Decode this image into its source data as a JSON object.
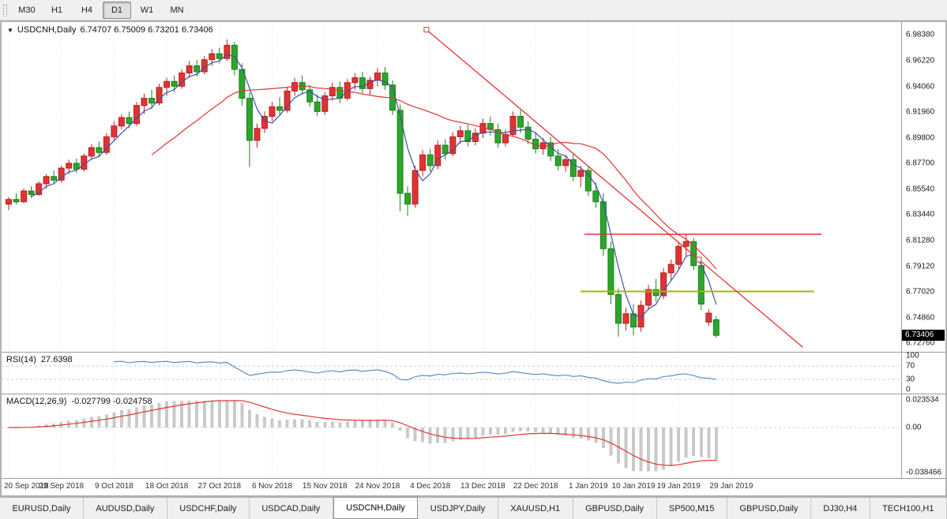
{
  "toolbar": {
    "timeframes": [
      {
        "label": "M30",
        "active": false
      },
      {
        "label": "H1",
        "active": false
      },
      {
        "label": "H4",
        "active": false
      },
      {
        "label": "D1",
        "active": true
      },
      {
        "label": "W1",
        "active": false
      },
      {
        "label": "MN",
        "active": false
      }
    ]
  },
  "chart": {
    "title_symbol": "USDCNH,Daily",
    "title_ohlc": "6.74707 6.75009 6.73201 6.73406",
    "current_price": "6.73406",
    "icons": {
      "title_arrow": "▼"
    },
    "price_axis": [
      "6.98380",
      "6.96220",
      "6.94060",
      "6.91960",
      "6.89800",
      "6.87700",
      "6.85540",
      "6.83440",
      "6.81280",
      "6.79120",
      "6.77020",
      "6.74860",
      "6.72760"
    ]
  },
  "chart_data": {
    "type": "candlestick",
    "symbol": "USDCNH",
    "timeframe": "Daily",
    "y_axis": {
      "min": 6.7276,
      "max": 6.9838
    },
    "style": {
      "up_color": "#e03434",
      "up_stroke": "#b42222",
      "down_color": "#2ca52c",
      "down_stroke": "#1f7f1f",
      "grid_color": "#e4e4e4",
      "badge_bg": "#000000"
    },
    "ohlc": [
      [
        6.843,
        6.849,
        6.838,
        6.847
      ],
      [
        6.847,
        6.852,
        6.843,
        6.845
      ],
      [
        6.845,
        6.856,
        6.844,
        6.854
      ],
      [
        6.854,
        6.858,
        6.848,
        6.851
      ],
      [
        6.851,
        6.862,
        6.85,
        6.86
      ],
      [
        6.86,
        6.868,
        6.856,
        6.866
      ],
      [
        6.866,
        6.871,
        6.86,
        6.863
      ],
      [
        6.863,
        6.875,
        6.861,
        6.873
      ],
      [
        6.873,
        6.88,
        6.868,
        6.877
      ],
      [
        6.877,
        6.881,
        6.869,
        6.872
      ],
      [
        6.872,
        6.885,
        6.87,
        6.883
      ],
      [
        6.883,
        6.893,
        6.88,
        6.89
      ],
      [
        6.89,
        6.895,
        6.882,
        6.886
      ],
      [
        6.886,
        6.902,
        6.884,
        6.899
      ],
      [
        6.899,
        6.912,
        6.896,
        6.908
      ],
      [
        6.908,
        6.918,
        6.905,
        6.915
      ],
      [
        6.915,
        6.92,
        6.906,
        6.91
      ],
      [
        6.91,
        6.928,
        6.908,
        6.925
      ],
      [
        6.925,
        6.935,
        6.918,
        6.931
      ],
      [
        6.931,
        6.938,
        6.922,
        6.927
      ],
      [
        6.927,
        6.943,
        6.925,
        6.94
      ],
      [
        6.94,
        6.948,
        6.933,
        6.945
      ],
      [
        6.945,
        6.95,
        6.936,
        6.941
      ],
      [
        6.941,
        6.955,
        6.939,
        6.952
      ],
      [
        6.952,
        6.962,
        6.948,
        6.958
      ],
      [
        6.958,
        6.963,
        6.949,
        6.953
      ],
      [
        6.953,
        6.966,
        6.951,
        6.963
      ],
      [
        6.963,
        6.972,
        6.958,
        6.968
      ],
      [
        6.968,
        6.973,
        6.96,
        6.964
      ],
      [
        6.964,
        6.98,
        6.962,
        6.975
      ],
      [
        6.975,
        6.978,
        6.95,
        6.955
      ],
      [
        6.955,
        6.96,
        6.925,
        6.931
      ],
      [
        6.931,
        6.936,
        6.874,
        6.896
      ],
      [
        6.896,
        6.91,
        6.89,
        6.906
      ],
      [
        6.906,
        6.92,
        6.902,
        6.916
      ],
      [
        6.916,
        6.928,
        6.912,
        6.924
      ],
      [
        6.924,
        6.932,
        6.917,
        6.921
      ],
      [
        6.921,
        6.94,
        6.919,
        6.937
      ],
      [
        6.937,
        6.948,
        6.933,
        6.944
      ],
      [
        6.944,
        6.95,
        6.934,
        6.938
      ],
      [
        6.938,
        6.942,
        6.924,
        6.928
      ],
      [
        6.928,
        6.934,
        6.916,
        6.92
      ],
      [
        6.92,
        6.936,
        6.917,
        6.933
      ],
      [
        6.933,
        6.944,
        6.929,
        6.94
      ],
      [
        6.94,
        6.945,
        6.927,
        6.931
      ],
      [
        6.931,
        6.947,
        6.929,
        6.944
      ],
      [
        6.944,
        6.952,
        6.938,
        6.948
      ],
      [
        6.948,
        6.953,
        6.935,
        6.939
      ],
      [
        6.939,
        6.949,
        6.934,
        6.946
      ],
      [
        6.946,
        6.956,
        6.941,
        6.952
      ],
      [
        6.952,
        6.957,
        6.938,
        6.942
      ],
      [
        6.942,
        6.946,
        6.917,
        6.921
      ],
      [
        6.921,
        6.926,
        6.837,
        6.852
      ],
      [
        6.852,
        6.858,
        6.833,
        6.843
      ],
      [
        6.843,
        6.875,
        6.84,
        6.871
      ],
      [
        6.871,
        6.888,
        6.866,
        6.884
      ],
      [
        6.884,
        6.889,
        6.87,
        6.875
      ],
      [
        6.875,
        6.896,
        6.872,
        6.892
      ],
      [
        6.892,
        6.897,
        6.88,
        6.885
      ],
      [
        6.885,
        6.903,
        6.883,
        6.899
      ],
      [
        6.899,
        6.908,
        6.893,
        6.904
      ],
      [
        6.904,
        6.909,
        6.891,
        6.895
      ],
      [
        6.895,
        6.906,
        6.892,
        6.902
      ],
      [
        6.902,
        6.914,
        6.898,
        6.91
      ],
      [
        6.91,
        6.916,
        6.9,
        6.905
      ],
      [
        6.905,
        6.91,
        6.89,
        6.894
      ],
      [
        6.894,
        6.905,
        6.891,
        6.901
      ],
      [
        6.901,
        6.92,
        6.899,
        6.916
      ],
      [
        6.916,
        6.921,
        6.902,
        6.907
      ],
      [
        6.907,
        6.912,
        6.893,
        6.897
      ],
      [
        6.897,
        6.903,
        6.885,
        6.889
      ],
      [
        6.889,
        6.898,
        6.884,
        6.894
      ],
      [
        6.894,
        6.899,
        6.879,
        6.883
      ],
      [
        6.883,
        6.889,
        6.871,
        6.875
      ],
      [
        6.875,
        6.884,
        6.87,
        6.88
      ],
      [
        6.88,
        6.885,
        6.862,
        6.866
      ],
      [
        6.866,
        6.875,
        6.857,
        6.871
      ],
      [
        6.871,
        6.874,
        6.85,
        6.854
      ],
      [
        6.854,
        6.861,
        6.84,
        6.845
      ],
      [
        6.845,
        6.852,
        6.8,
        6.806
      ],
      [
        6.806,
        6.812,
        6.76,
        6.768
      ],
      [
        6.768,
        6.773,
        6.733,
        6.744
      ],
      [
        6.744,
        6.757,
        6.738,
        6.752
      ],
      [
        6.752,
        6.76,
        6.734,
        6.741
      ],
      [
        6.741,
        6.763,
        6.737,
        6.759
      ],
      [
        6.759,
        6.776,
        6.755,
        6.772
      ],
      [
        6.772,
        6.781,
        6.762,
        6.767
      ],
      [
        6.767,
        6.79,
        6.764,
        6.786
      ],
      [
        6.786,
        6.797,
        6.78,
        6.793
      ],
      [
        6.793,
        6.812,
        6.789,
        6.808
      ],
      [
        6.808,
        6.818,
        6.8,
        6.812
      ],
      [
        6.812,
        6.815,
        6.788,
        6.792
      ],
      [
        6.792,
        6.796,
        6.755,
        6.76
      ],
      [
        6.745,
        6.756,
        6.742,
        6.7525
      ],
      [
        6.74707,
        6.75009,
        6.73201,
        6.73406
      ]
    ],
    "date_ticks": [
      {
        "i": 0,
        "label": "20 Sep 2018"
      },
      {
        "i": 7,
        "label": "29 Sep 2018"
      },
      {
        "i": 14,
        "label": "9 Oct 2018"
      },
      {
        "i": 21,
        "label": "18 Oct 2018"
      },
      {
        "i": 28,
        "label": "27 Oct 2018"
      },
      {
        "i": 35,
        "label": "6 Nov 2018"
      },
      {
        "i": 42,
        "label": "15 Nov 2018"
      },
      {
        "i": 49,
        "label": "24 Nov 2018"
      },
      {
        "i": 56,
        "label": "4 Dec 2018"
      },
      {
        "i": 63,
        "label": "13 Dec 2018"
      },
      {
        "i": 70,
        "label": "22 Dec 2018"
      },
      {
        "i": 77,
        "label": "1 Jan 2019"
      },
      {
        "i": 83,
        "label": "10 Jan 2019"
      },
      {
        "i": 89,
        "label": "19 Jan 2019"
      },
      {
        "i": 96,
        "label": "29 Jan 2019"
      }
    ],
    "overlays": {
      "ma_fast": {
        "type": "sma",
        "period": 4,
        "color": "#3f51a3"
      },
      "ma_slow": {
        "type": "sma",
        "period": 20,
        "color": "#e03434"
      },
      "trendline": {
        "color": "#e03434",
        "anchors": [
          {
            "index": 55.5,
            "price": 6.988
          },
          {
            "index": 91.7,
            "price": 6.797
          }
        ],
        "extend_to_index": 105.5
      },
      "hlines": [
        {
          "price": 6.818,
          "from_index": 76.5,
          "to_index": 108,
          "color": "#e03434",
          "width": 1.4
        },
        {
          "price": 6.7705,
          "from_index": 76,
          "to_index": 107,
          "color": "#a8b400",
          "width": 2
        }
      ]
    },
    "indicators": {
      "rsi": {
        "label": "RSI(14)",
        "value": "27.6398",
        "period": 14,
        "levels": [
          100,
          70,
          30,
          0
        ],
        "dashed_levels": [
          70,
          30
        ],
        "color": "#4d86c0",
        "level_color": "#c2cbd9"
      },
      "macd": {
        "label": "MACD(12,26,9)",
        "value": "-0.027799 -0.024758",
        "fast": 12,
        "slow": 26,
        "signal": 9,
        "axis_labels": [
          "0.023534",
          "0.00",
          "-0.038466"
        ],
        "hist_color": "#c9c9c9",
        "signal_color": "#e03434",
        "zero_color": "#d2d2d2"
      }
    }
  },
  "bottom_tabs": [
    {
      "label": "EURUSD,Daily",
      "active": false
    },
    {
      "label": "AUDUSD,Daily",
      "active": false
    },
    {
      "label": "USDCHF,Daily",
      "active": false
    },
    {
      "label": "USDCAD,Daily",
      "active": false
    },
    {
      "label": "USDCNH,Daily",
      "active": true
    },
    {
      "label": "USDJPY,Daily",
      "active": false
    },
    {
      "label": "XAUUSD,H1",
      "active": false
    },
    {
      "label": "GBPUSD,Daily",
      "active": false
    },
    {
      "label": "SP500,M15",
      "active": false
    },
    {
      "label": "GBPUSD,Daily",
      "active": false
    },
    {
      "label": "DJ30,H4",
      "active": false
    },
    {
      "label": "TECH100,H1",
      "active": false
    }
  ]
}
